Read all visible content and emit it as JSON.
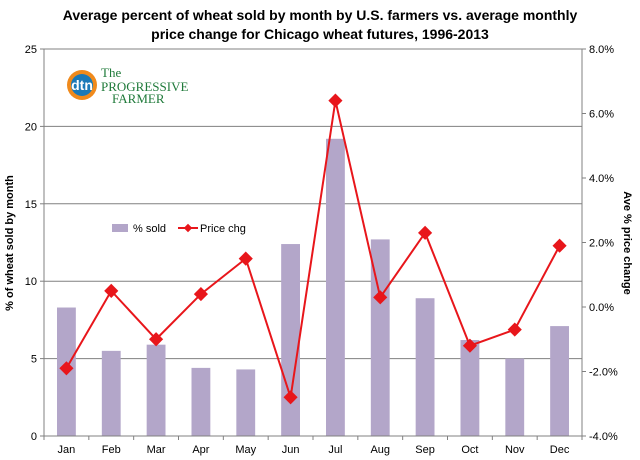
{
  "chart_data": {
    "type": "bar",
    "title_lines": [
      "Average percent of wheat sold by month by U.S. farmers vs. average monthly",
      "price change for Chicago wheat futures, 1996-2013"
    ],
    "categories": [
      "Jan",
      "Feb",
      "Mar",
      "Apr",
      "May",
      "Jun",
      "Jul",
      "Aug",
      "Sep",
      "Oct",
      "Nov",
      "Dec"
    ],
    "series": [
      {
        "name": "% sold",
        "type": "bar",
        "axis": "left",
        "color": "#b3a6c9",
        "values": [
          8.3,
          5.5,
          5.9,
          4.4,
          4.3,
          12.4,
          19.2,
          12.7,
          8.9,
          6.2,
          5.0,
          7.1
        ]
      },
      {
        "name": "Price chg",
        "type": "line",
        "axis": "right",
        "color": "#e8161b",
        "values": [
          -1.9,
          0.5,
          -1.0,
          0.4,
          1.5,
          -2.8,
          6.4,
          0.3,
          2.3,
          -1.2,
          -0.7,
          1.9
        ]
      }
    ],
    "ylabel_left": "% of wheat sold by month",
    "ylabel_right": "Ave % price change",
    "ylim_left": [
      0,
      25
    ],
    "yticks_left": [
      0,
      5,
      10,
      15,
      20,
      25
    ],
    "ylim_right": [
      -4,
      8
    ],
    "yticks_right": [
      "-4.0%",
      "-2.0%",
      "0.0%",
      "2.0%",
      "4.0%",
      "6.0%",
      "8.0%"
    ],
    "grid": true,
    "legend_position": "center-left"
  },
  "logo": {
    "badge": "dtn",
    "line1": "The",
    "line2": "PROGRESSIVE",
    "line3": "FARMER"
  }
}
